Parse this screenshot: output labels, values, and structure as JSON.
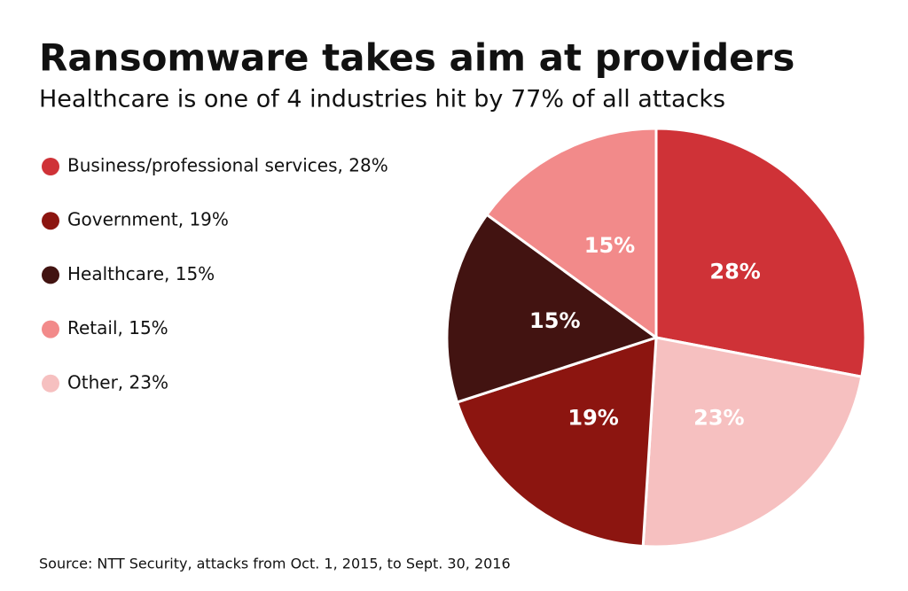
{
  "chart_data": {
    "type": "pie",
    "title": "Ransomware takes aim at providers",
    "subtitle": "Healthcare is one of 4 industries hit by 77% of all attacks",
    "source": "Source: NTT Security, attacks from Oct. 1, 2015, to Sept. 30, 2016",
    "categories": [
      "Business/professional services, 28%",
      "Other, 23%",
      "Government, 19%",
      "Healthcare, 15%",
      "Retail, 15%"
    ],
    "values": [
      28,
      23,
      19,
      15,
      15
    ],
    "value_labels": [
      "28%",
      "23%",
      "19%",
      "15%",
      "15%"
    ],
    "colors": [
      "#cf3237",
      "#f6c0c0",
      "#8c1510",
      "#421311",
      "#f28a8a"
    ],
    "legend_order": [
      0,
      2,
      3,
      4,
      1
    ]
  }
}
